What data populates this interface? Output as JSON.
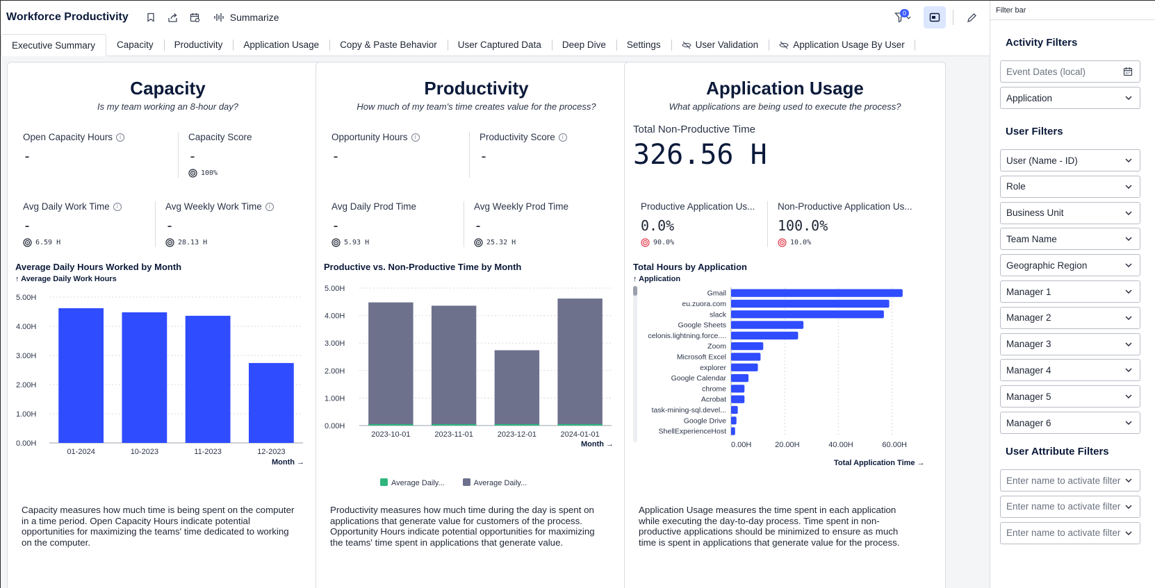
{
  "header": {
    "title": "Workforce Productivity",
    "summarize_label": "Summarize",
    "filter_count": "0"
  },
  "tabs": [
    {
      "label": "Executive Summary"
    },
    {
      "label": "Capacity"
    },
    {
      "label": "Productivity"
    },
    {
      "label": "Application Usage"
    },
    {
      "label": "Copy & Paste Behavior"
    },
    {
      "label": "User Captured Data"
    },
    {
      "label": "Deep Dive"
    },
    {
      "label": "Settings"
    },
    {
      "label": "User Validation"
    },
    {
      "label": "Application Usage By User"
    }
  ],
  "capacity": {
    "title": "Capacity",
    "subtitle": "Is my team working an 8-hour day?",
    "open_capacity_label": "Open Capacity Hours",
    "open_capacity_value": "-",
    "capacity_score_label": "Capacity Score",
    "capacity_score_value": "-",
    "capacity_score_target": "100%",
    "avg_daily_label": "Avg Daily Work Time",
    "avg_daily_value": "-",
    "avg_daily_target": "6.59 H",
    "avg_weekly_label": "Avg Weekly Work Time",
    "avg_weekly_value": "-",
    "avg_weekly_target": "28.13 H",
    "chart_title": "Average Daily Hours Worked by Month",
    "y_caption": "↑ Average Daily Work Hours",
    "x_link": "Month →",
    "description": "Capacity measures how much time is being spent on the computer in a time period. Open Capacity Hours indicate potential opportunities for maximizing the teams' time dedicated to working on the computer."
  },
  "productivity": {
    "title": "Productivity",
    "subtitle": "How much of my team's time creates value for the process?",
    "opportunity_label": "Opportunity Hours",
    "opportunity_value": "-",
    "score_label": "Productivity Score",
    "score_value": "-",
    "avg_daily_label": "Avg Daily Prod Time",
    "avg_daily_value": "-",
    "avg_daily_target": "5.93 H",
    "avg_weekly_label": "Avg Weekly Prod Time",
    "avg_weekly_value": "-",
    "avg_weekly_target": "25.32 H",
    "chart_title": "Productive vs. Non-Productive Time by Month",
    "x_link": "Month →",
    "legend": [
      "Average Daily...",
      "Average Daily..."
    ],
    "description": "Productivity measures how much time during the day is spent on applications that generate value for customers of the process. Opportunity Hours indicate potential opportunities for maximizing the teams' time spent in applications that generate value."
  },
  "app_usage": {
    "title": "Application Usage",
    "subtitle": "What applications are being used to execute the process?",
    "total_np_label": "Total Non-Productive Time",
    "total_np_value": "326.56 H",
    "prod_label": "Productive Application Us...",
    "prod_value": "0.0%",
    "prod_target": "90.0%",
    "nonprod_label": "Non-Productive Application Us...",
    "nonprod_value": "100.0%",
    "nonprod_target": "10.0%",
    "chart_title": "Total Hours by Application",
    "y_caption": "↑ Application",
    "x_link": "Total Application Time →",
    "description": "Application Usage measures the time spent in each application while executing the day-to-day process. Time spent in non-productive applications should be minimized to ensure as much time is spent in applications that generate value for the process."
  },
  "chart_data": [
    {
      "type": "bar",
      "title": "Average Daily Hours Worked by Month",
      "xlabel": "Month",
      "ylabel": "Average Daily Work Hours",
      "categories": [
        "01-2024",
        "10-2023",
        "11-2023",
        "12-2023"
      ],
      "values": [
        4.62,
        4.48,
        4.36,
        2.74
      ],
      "ylim": [
        0,
        5
      ],
      "yticks": [
        "0.00H",
        "1.00H",
        "2.00H",
        "3.00H",
        "4.00H",
        "5.00H"
      ],
      "color": "#2f4cff"
    },
    {
      "type": "bar",
      "title": "Productive vs. Non-Productive Time by Month",
      "xlabel": "Month",
      "categories": [
        "2023-10-01",
        "2023-11-01",
        "2023-12-01",
        "2024-01-01"
      ],
      "series": [
        {
          "name": "Average Daily...",
          "values": [
            0,
            0,
            0,
            0
          ],
          "color": "#2fb57e"
        },
        {
          "name": "Average Daily...",
          "values": [
            4.48,
            4.36,
            2.74,
            4.62
          ],
          "color": "#6d718c"
        }
      ],
      "ylim": [
        0,
        5
      ],
      "yticks": [
        "0.00H",
        "1.00H",
        "2.00H",
        "3.00H",
        "4.00H",
        "5.00H"
      ]
    },
    {
      "type": "bar",
      "orientation": "horizontal",
      "title": "Total Hours by Application",
      "xlabel": "Total Application Time",
      "ylabel": "Application",
      "categories": [
        "Gmail",
        "eu.zuora.com",
        "slack",
        "Google Sheets",
        "celonis.lightning.force....",
        "Zoom",
        "Microsoft Excel",
        "explorer",
        "Google Calendar",
        "chrome",
        "Acrobat",
        "task-mining-sql.devel...",
        "Google Drive",
        "ShellExperienceHost"
      ],
      "values": [
        64,
        59,
        57,
        27,
        25,
        12,
        11,
        10,
        6.5,
        5,
        5,
        2.5,
        2,
        1.5
      ],
      "xlim": [
        0,
        70
      ],
      "xticks": [
        0,
        20,
        40,
        60
      ],
      "xtick_labels": [
        "0.00H",
        "20.00H",
        "40.00H",
        "60.00H"
      ],
      "color": "#2f4cff"
    }
  ],
  "sidebar": {
    "header": "Filter bar",
    "activity_title": "Activity Filters",
    "event_dates_placeholder": "Event Dates (local)",
    "application": "Application",
    "user_title": "User Filters",
    "user_filters": [
      "User (Name - ID)",
      "Role",
      "Business Unit",
      "Team Name",
      "Geographic Region",
      "Manager 1",
      "Manager 2",
      "Manager 3",
      "Manager 4",
      "Manager 5",
      "Manager 6"
    ],
    "attr_title": "User Attribute Filters",
    "attr_filters": [
      "Enter name to activate filter",
      "Enter name to activate filter",
      "Enter name to activate filter"
    ]
  }
}
